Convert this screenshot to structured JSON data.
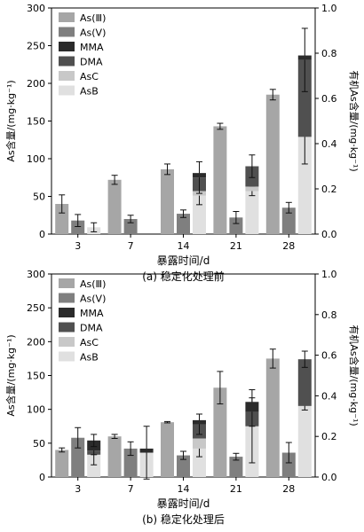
{
  "chart_data": [
    {
      "type": "bar",
      "caption": "(a) 稳定化处理前",
      "xlabel": "暴露时间/d",
      "ylabel_left": "As含量/(mg·kg⁻¹)",
      "ylabel_right": "有机As含量/(mg·kg⁻¹)",
      "categories": [
        "3",
        "7",
        "14",
        "21",
        "28"
      ],
      "ylim_left": [
        0,
        300
      ],
      "yticks_left": [
        "0",
        "50",
        "100",
        "150",
        "200",
        "250",
        "300"
      ],
      "ylim_right": [
        0,
        1.0
      ],
      "yticks_right": [
        "0.0",
        "0.2",
        "0.4",
        "0.6",
        "0.8",
        "1.0"
      ],
      "legend": [
        "As(Ⅲ)",
        "As(Ⅴ)",
        "MMA",
        "DMA",
        "AsC",
        "AsB"
      ],
      "series": [
        {
          "name": "As(Ⅲ)",
          "axis": "left",
          "values": [
            40,
            72,
            86,
            143,
            185
          ],
          "errors": [
            12,
            6,
            7,
            4,
            7
          ]
        },
        {
          "name": "As(Ⅴ)",
          "axis": "left",
          "values": [
            18,
            20,
            27,
            22,
            35
          ],
          "errors": [
            8,
            5,
            5,
            8,
            7
          ]
        },
        {
          "name": "MMA",
          "axis": "right",
          "stacked": true,
          "values": [
            0.0,
            0.0,
            0.02,
            0.0,
            0.02
          ],
          "errors": [
            0,
            0,
            0,
            0,
            0
          ]
        },
        {
          "name": "DMA",
          "axis": "right",
          "stacked": true,
          "values": [
            0.0,
            0.0,
            0.06,
            0.09,
            0.34
          ],
          "errors": [
            0,
            0,
            0.07,
            0.05,
            0.14
          ]
        },
        {
          "name": "AsC",
          "axis": "right",
          "stacked": true,
          "values": [
            0.0,
            0.0,
            0.02,
            0.02,
            0.0
          ],
          "errors": [
            0,
            0,
            0,
            0,
            0
          ]
        },
        {
          "name": "AsB",
          "axis": "right",
          "stacked": true,
          "values": [
            0.03,
            0.0,
            0.17,
            0.19,
            0.43
          ],
          "errors": [
            0.02,
            0,
            0.04,
            0.02,
            0.12
          ]
        }
      ]
    },
    {
      "type": "bar",
      "caption": "(b) 稳定化处理后",
      "xlabel": "暴露时间/d",
      "ylabel_left": "As含量/(mg·kg⁻¹)",
      "ylabel_right": "有机As含量/(mg·kg⁻¹)",
      "categories": [
        "3",
        "7",
        "14",
        "21",
        "28"
      ],
      "ylim_left": [
        0,
        300
      ],
      "yticks_left": [
        "0",
        "50",
        "100",
        "150",
        "200",
        "250",
        "300"
      ],
      "ylim_right": [
        0,
        1.0
      ],
      "yticks_right": [
        "0.0",
        "0.2",
        "0.4",
        "0.6",
        "0.8",
        "1.0"
      ],
      "legend": [
        "As(Ⅲ)",
        "As(Ⅴ)",
        "MMA",
        "DMA",
        "AsC",
        "AsB"
      ],
      "series": [
        {
          "name": "As(Ⅲ)",
          "axis": "left",
          "values": [
            40,
            60,
            81,
            132,
            175
          ],
          "errors": [
            3,
            3,
            1,
            24,
            14
          ]
        },
        {
          "name": "As(Ⅴ)",
          "axis": "left",
          "values": [
            58,
            42,
            32,
            30,
            36
          ],
          "errors": [
            15,
            10,
            6,
            5,
            15
          ]
        },
        {
          "name": "MMA",
          "axis": "right",
          "stacked": true,
          "values": [
            0.05,
            0.02,
            0.02,
            0.05,
            0.0
          ],
          "errors": [
            0.03,
            0,
            0,
            0,
            0
          ]
        },
        {
          "name": "DMA",
          "axis": "right",
          "stacked": true,
          "values": [
            0.02,
            0.0,
            0.07,
            0.07,
            0.23
          ],
          "errors": [
            0.02,
            0,
            0.05,
            0.07,
            0.04
          ]
        },
        {
          "name": "AsC",
          "axis": "right",
          "stacked": true,
          "values": [
            0.0,
            0.0,
            0.05,
            0.0,
            0.0
          ],
          "errors": [
            0,
            0,
            0,
            0,
            0
          ]
        },
        {
          "name": "AsB",
          "axis": "right",
          "stacked": true,
          "values": [
            0.11,
            0.12,
            0.14,
            0.25,
            0.35
          ],
          "errors": [
            0.05,
            0.13,
            0.04,
            0.18,
            0.02
          ]
        }
      ]
    }
  ],
  "colors": {
    "As(Ⅲ)": "#a6a6a6",
    "As(Ⅴ)": "#7f7f7f",
    "MMA": "#2b2b2b",
    "DMA": "#505050",
    "AsC": "#c8c8c8",
    "AsB": "#e0e0e0"
  }
}
